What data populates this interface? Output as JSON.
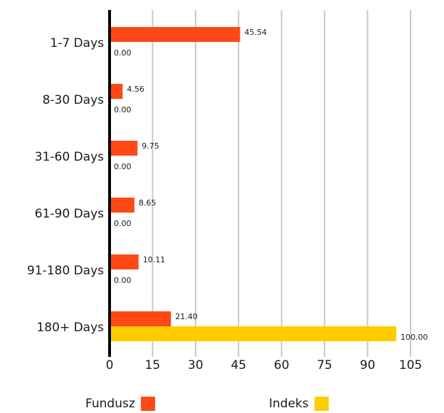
{
  "chart_data": {
    "type": "bar",
    "orientation": "horizontal",
    "categories": [
      "1-7 Days",
      "8-30 Days",
      "31-60 Days",
      "61-90 Days",
      "91-180 Days",
      "180+ Days"
    ],
    "series": [
      {
        "name": "Fundusz",
        "color": "#FF4814",
        "values": [
          45.54,
          4.56,
          9.75,
          8.65,
          10.11,
          21.4
        ],
        "labels": [
          "45.54",
          "4.56",
          "9.75",
          "8.65",
          "10.11",
          "21.40"
        ]
      },
      {
        "name": "Indeks",
        "color": "#FFCC00",
        "values": [
          0,
          0,
          0,
          0,
          0,
          100
        ],
        "labels": [
          "0.00",
          "0.00",
          "0.00",
          "0.00",
          "0.00",
          "100.00"
        ]
      }
    ],
    "xlim": [
      0,
      105
    ],
    "xticks": [
      0,
      15,
      30,
      45,
      60,
      75,
      90,
      105
    ],
    "grid": true,
    "legend_position": "bottom"
  }
}
